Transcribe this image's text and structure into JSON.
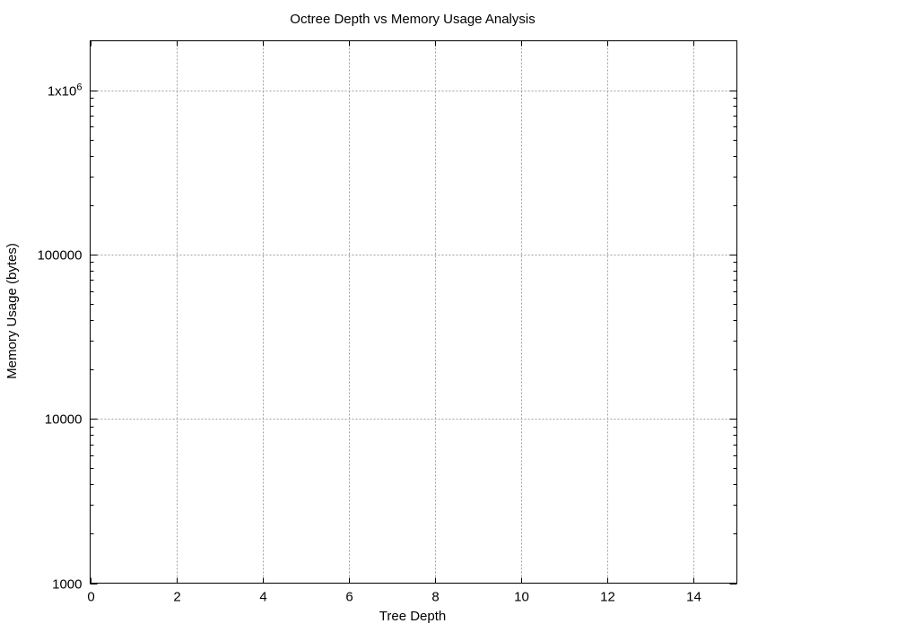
{
  "chart_data": {
    "type": "line",
    "title": "Octree Depth vs Memory Usage Analysis",
    "xlabel": "Tree Depth",
    "ylabel": "Memory Usage (bytes)",
    "xlim": [
      0,
      15
    ],
    "ylim": [
      1000,
      2000000
    ],
    "y_scale": "log",
    "grid": true,
    "legend": "none",
    "x_ticks": [
      {
        "value": 0,
        "label": "0"
      },
      {
        "value": 2,
        "label": "2"
      },
      {
        "value": 4,
        "label": "4"
      },
      {
        "value": 6,
        "label": "6"
      },
      {
        "value": 8,
        "label": "8"
      },
      {
        "value": 10,
        "label": "10"
      },
      {
        "value": 12,
        "label": "12"
      },
      {
        "value": 14,
        "label": "14"
      }
    ],
    "y_ticks": [
      {
        "value": 1000,
        "label": "1000"
      },
      {
        "value": 10000,
        "label": "10000"
      },
      {
        "value": 100000,
        "label": "100000"
      },
      {
        "value": 1000000,
        "base": "1x10",
        "exp": "6"
      }
    ],
    "series": []
  }
}
